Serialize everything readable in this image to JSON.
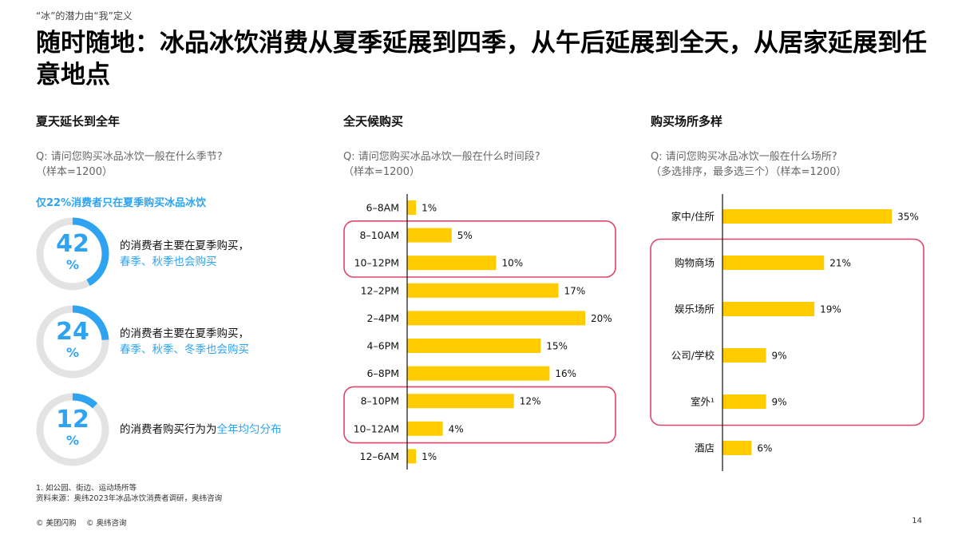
{
  "kicker": "“冰”的潜力由“我”定义",
  "title": "随时随地：冰品冰饮消费从夏季延展到四季，从午后延展到全天，从居家延展到任意地点",
  "left": {
    "heading": "夏天延长到全年",
    "question": "Q: 请问您购买冰品冰饮一般在什么季节?",
    "sample": "（样本=1200）",
    "highlight": "仅22%消费者只在夏季购买冰品冰饮",
    "donuts": [
      {
        "value": 42,
        "pct": "%",
        "text": "的消费者主要在夏季购买，",
        "blue": "春季、秋季也会购买",
        "line2": true
      },
      {
        "value": 24,
        "pct": "%",
        "text": "的消费者主要在夏季购买，",
        "blue": "春季、秋季、冬季也会购买",
        "line2": true
      },
      {
        "value": 12,
        "pct": "%",
        "text": "的消费者购买行为为",
        "blue": "全年均匀分布",
        "line2": false
      }
    ],
    "colors": {
      "accent": "#2ea3f2",
      "track": "#e3e3e3"
    }
  },
  "middle": {
    "heading": "全天候购买",
    "question": "Q: 请问您购买冰品冰饮一般在什么时间段?",
    "sample": "（样本=1200）"
  },
  "right": {
    "heading": "购买场所多样",
    "question": "Q: 请问您购买冰品冰饮一般在什么场所?",
    "sample": "（多选排序，最多选三个）（样本=1200）"
  },
  "chart_data": [
    {
      "type": "bar",
      "orientation": "horizontal",
      "categories": [
        "6–8AM",
        "8–10AM",
        "10–12PM",
        "12–2PM",
        "2–4PM",
        "4–6PM",
        "6–8PM",
        "8–10PM",
        "10–12AM",
        "12–6AM"
      ],
      "values": [
        1,
        5,
        10,
        17,
        20,
        15,
        16,
        12,
        4,
        1
      ],
      "unit": "%",
      "color": "#ffcc00",
      "highlight_groups": [
        [
          1,
          2
        ],
        [
          7,
          8
        ]
      ],
      "highlight_color": "#e0456a"
    },
    {
      "type": "bar",
      "orientation": "horizontal",
      "categories": [
        "家中/住所",
        "购物商场",
        "娱乐场所",
        "公司/学校",
        "室外¹",
        "酒店"
      ],
      "values": [
        35,
        21,
        19,
        9,
        9,
        6
      ],
      "unit": "%",
      "color": "#ffcc00",
      "highlight_groups": [
        [
          1,
          4
        ]
      ],
      "highlight_color": "#e0456a"
    }
  ],
  "footnote": "1. 如公园、街边、运动场所等",
  "source": "资料来源：奥纬2023年冰品冰饮消费者调研，奥纬咨询",
  "copyright": "© 美团闪购　 © 奥纬咨询",
  "page": "14"
}
